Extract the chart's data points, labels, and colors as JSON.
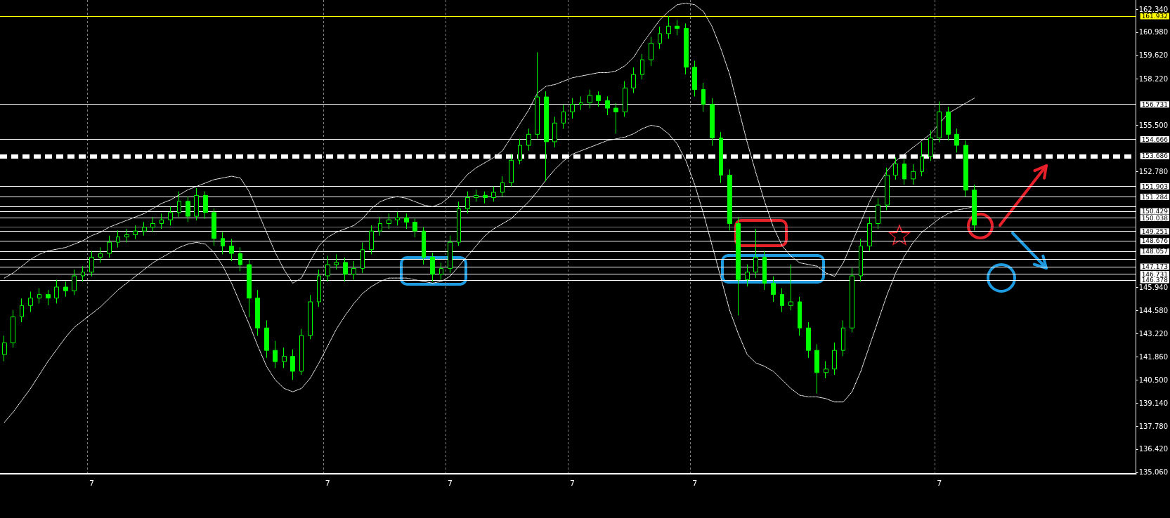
{
  "chart_data": {
    "type": "candlestick",
    "color": "#00ff00",
    "categories": [
      null,
      null,
      null,
      null,
      null,
      null,
      null,
      null,
      null,
      null,
      "7",
      null,
      null,
      null,
      null,
      null,
      null,
      null,
      null,
      null,
      null,
      null,
      null,
      null,
      null,
      null,
      null,
      null,
      null,
      null,
      null,
      null,
      null,
      null,
      null,
      null,
      null,
      "7",
      null,
      null,
      null,
      null,
      null,
      null,
      null,
      null,
      null,
      null,
      null,
      null,
      null,
      "7",
      null,
      null,
      null,
      null,
      null,
      null,
      null,
      null,
      null,
      null,
      null,
      null,
      null,
      "7",
      null,
      null,
      null,
      null,
      null,
      null,
      null,
      null,
      null,
      null,
      null,
      null,
      null,
      "7",
      null,
      null,
      null,
      null,
      null,
      null,
      null,
      null,
      null,
      null,
      null,
      null,
      null,
      null,
      null,
      null,
      null,
      null,
      null,
      null,
      null,
      null,
      null,
      null,
      null,
      null,
      null,
      "7",
      null,
      null,
      null,
      null,
      null,
      null,
      null,
      null,
      null,
      null,
      null,
      null,
      null,
      null,
      null,
      null,
      null,
      null,
      null,
      null,
      null,
      null
    ],
    "ohlc": [
      [
        142.0,
        143.1,
        141.6,
        142.68
      ],
      [
        142.68,
        144.6,
        142.4,
        144.22
      ],
      [
        144.22,
        145.3,
        143.9,
        144.88
      ],
      [
        144.88,
        145.7,
        144.5,
        145.32
      ],
      [
        145.32,
        145.9,
        145.0,
        145.53
      ],
      [
        145.53,
        145.8,
        144.9,
        145.32
      ],
      [
        145.32,
        146.4,
        145.0,
        145.97
      ],
      [
        145.97,
        146.3,
        145.4,
        145.75
      ],
      [
        145.75,
        147.0,
        145.5,
        146.63
      ],
      [
        146.63,
        147.2,
        146.3,
        146.85
      ],
      [
        146.85,
        148.1,
        146.6,
        147.73
      ],
      [
        147.73,
        148.3,
        147.4,
        147.95
      ],
      [
        147.95,
        149.0,
        147.7,
        148.61
      ],
      [
        148.61,
        149.3,
        148.3,
        148.92
      ],
      [
        148.92,
        149.4,
        148.6,
        149.05
      ],
      [
        149.05,
        149.6,
        148.8,
        149.27
      ],
      [
        149.27,
        149.8,
        149.0,
        149.49
      ],
      [
        149.49,
        150.1,
        149.2,
        149.71
      ],
      [
        149.71,
        150.3,
        149.4,
        149.93
      ],
      [
        149.93,
        150.7,
        149.6,
        150.36
      ],
      [
        150.36,
        151.6,
        150.1,
        151.02
      ],
      [
        151.02,
        151.3,
        149.8,
        150.14
      ],
      [
        150.14,
        151.8,
        149.9,
        151.37
      ],
      [
        151.37,
        151.6,
        150.0,
        150.36
      ],
      [
        150.36,
        150.6,
        148.4,
        148.83
      ],
      [
        148.83,
        149.2,
        147.9,
        148.39
      ],
      [
        148.39,
        148.8,
        147.5,
        147.95
      ],
      [
        147.95,
        148.3,
        146.9,
        147.29
      ],
      [
        147.29,
        147.6,
        144.2,
        145.32
      ],
      [
        145.32,
        145.8,
        143.1,
        143.56
      ],
      [
        143.56,
        144.0,
        141.8,
        142.24
      ],
      [
        142.24,
        142.8,
        141.2,
        141.58
      ],
      [
        141.58,
        142.4,
        141.2,
        141.89
      ],
      [
        141.89,
        142.3,
        140.5,
        141.01
      ],
      [
        141.01,
        143.5,
        140.8,
        143.12
      ],
      [
        143.12,
        145.5,
        142.9,
        145.1
      ],
      [
        145.1,
        147.0,
        144.8,
        146.63
      ],
      [
        146.63,
        147.8,
        146.3,
        147.29
      ],
      [
        147.29,
        147.9,
        147.0,
        147.42
      ],
      [
        147.42,
        147.7,
        146.3,
        146.72
      ],
      [
        146.72,
        147.5,
        146.4,
        147.07
      ],
      [
        147.07,
        148.6,
        146.8,
        148.17
      ],
      [
        148.17,
        149.6,
        147.9,
        149.27
      ],
      [
        149.27,
        150.1,
        149.0,
        149.71
      ],
      [
        149.71,
        150.3,
        149.4,
        149.93
      ],
      [
        149.93,
        150.4,
        149.6,
        150.06
      ],
      [
        150.06,
        150.3,
        149.4,
        149.79
      ],
      [
        149.79,
        150.0,
        148.9,
        149.27
      ],
      [
        149.27,
        149.5,
        147.3,
        147.73
      ],
      [
        147.73,
        148.0,
        146.3,
        146.72
      ],
      [
        146.72,
        147.4,
        146.4,
        147.07
      ],
      [
        147.07,
        149.0,
        146.8,
        148.61
      ],
      [
        148.61,
        151.0,
        148.4,
        150.58
      ],
      [
        150.58,
        151.6,
        150.3,
        151.24
      ],
      [
        151.24,
        151.7,
        151.0,
        151.37
      ],
      [
        151.37,
        151.6,
        150.9,
        151.24
      ],
      [
        151.24,
        151.9,
        151.0,
        151.55
      ],
      [
        151.55,
        152.5,
        151.3,
        152.12
      ],
      [
        152.12,
        153.8,
        151.9,
        153.44
      ],
      [
        153.44,
        154.7,
        153.2,
        154.32
      ],
      [
        154.32,
        155.3,
        154.0,
        154.97
      ],
      [
        154.97,
        159.8,
        154.7,
        157.17
      ],
      [
        157.17,
        157.5,
        152.2,
        154.53
      ],
      [
        154.53,
        156.0,
        154.2,
        155.63
      ],
      [
        155.63,
        156.7,
        155.3,
        156.29
      ],
      [
        156.29,
        157.1,
        155.9,
        156.73
      ],
      [
        156.73,
        157.2,
        156.4,
        156.82
      ],
      [
        156.82,
        157.6,
        156.5,
        157.26
      ],
      [
        157.26,
        157.5,
        156.6,
        156.95
      ],
      [
        156.95,
        157.2,
        156.1,
        156.51
      ],
      [
        156.51,
        156.8,
        155.0,
        156.29
      ],
      [
        156.29,
        158.1,
        156.0,
        157.7
      ],
      [
        157.7,
        158.9,
        157.4,
        158.49
      ],
      [
        158.49,
        159.7,
        158.2,
        159.36
      ],
      [
        159.36,
        160.7,
        159.0,
        160.33
      ],
      [
        160.33,
        161.3,
        160.0,
        160.9
      ],
      [
        160.9,
        161.93,
        160.6,
        161.34
      ],
      [
        161.34,
        161.7,
        160.8,
        161.21
      ],
      [
        161.21,
        161.5,
        158.5,
        158.92
      ],
      [
        158.92,
        159.3,
        157.2,
        157.61
      ],
      [
        157.61,
        158.0,
        156.3,
        156.73
      ],
      [
        156.73,
        157.1,
        154.3,
        154.75
      ],
      [
        154.75,
        155.1,
        152.1,
        152.56
      ],
      [
        152.56,
        152.9,
        149.3,
        149.71
      ],
      [
        149.71,
        150.1,
        144.3,
        146.41
      ],
      [
        146.41,
        147.3,
        146.0,
        146.85
      ],
      [
        146.85,
        149.4,
        146.5,
        147.73
      ],
      [
        147.73,
        148.1,
        145.8,
        146.19
      ],
      [
        146.19,
        146.6,
        145.1,
        145.53
      ],
      [
        145.53,
        145.9,
        144.5,
        144.88
      ],
      [
        144.88,
        147.3,
        144.6,
        145.1
      ],
      [
        145.1,
        145.4,
        143.1,
        143.56
      ],
      [
        143.56,
        143.9,
        141.8,
        142.24
      ],
      [
        142.24,
        142.6,
        139.7,
        140.93
      ],
      [
        140.93,
        141.6,
        140.6,
        141.14
      ],
      [
        141.14,
        142.7,
        140.8,
        142.24
      ],
      [
        142.24,
        144.0,
        141.9,
        143.56
      ],
      [
        143.56,
        147.1,
        143.3,
        146.63
      ],
      [
        146.63,
        148.8,
        146.3,
        148.39
      ],
      [
        148.39,
        150.1,
        148.1,
        149.71
      ],
      [
        149.71,
        151.2,
        149.4,
        150.8
      ],
      [
        150.8,
        153.0,
        150.5,
        152.56
      ],
      [
        152.56,
        153.6,
        152.3,
        153.22
      ],
      [
        153.22,
        153.5,
        152.0,
        152.34
      ],
      [
        152.34,
        153.2,
        152.0,
        152.78
      ],
      [
        152.78,
        154.5,
        152.5,
        153.66
      ],
      [
        153.66,
        155.2,
        153.4,
        154.75
      ],
      [
        154.75,
        156.9,
        154.5,
        156.29
      ],
      [
        156.29,
        156.6,
        154.6,
        154.97
      ],
      [
        154.97,
        155.3,
        153.9,
        154.32
      ],
      [
        154.32,
        154.6,
        151.3,
        151.68
      ],
      [
        151.68,
        152.0,
        149.3,
        149.62
      ],
      null,
      null,
      null,
      null,
      null,
      null,
      null,
      null,
      null,
      null,
      null,
      null,
      null,
      null,
      null,
      null,
      null,
      null
    ],
    "series": [
      {
        "type": "line",
        "color": "#ffffff",
        "line_style": "dotted",
        "marker": "none",
        "values": [
          146.5,
          146.8,
          147.2,
          147.6,
          147.9,
          148.1,
          148.2,
          148.3,
          148.5,
          148.7,
          149.0,
          149.2,
          149.5,
          149.7,
          149.9,
          150.1,
          150.3,
          150.6,
          150.9,
          151.1,
          151.4,
          151.7,
          151.9,
          152.1,
          152.3,
          152.4,
          152.5,
          152.4,
          151.6,
          150.4,
          149.2,
          148.0,
          147.0,
          146.2,
          146.5,
          147.5,
          148.4,
          148.9,
          149.2,
          149.4,
          149.6,
          150.0,
          150.6,
          151.0,
          151.2,
          151.3,
          151.2,
          151.0,
          150.8,
          150.7,
          150.9,
          151.3,
          152.0,
          152.6,
          153.0,
          153.3,
          153.6,
          154.0,
          154.8,
          155.6,
          156.4,
          157.4,
          157.8,
          157.9,
          158.1,
          158.3,
          158.4,
          158.5,
          158.6,
          158.6,
          158.7,
          159.0,
          159.5,
          160.3,
          161.0,
          161.7,
          162.2,
          162.6,
          162.7,
          162.6,
          162.2,
          161.3,
          160.0,
          158.5,
          156.5,
          154.5,
          152.7,
          151.0,
          149.5,
          148.4,
          147.8,
          147.4,
          147.3,
          147.2,
          146.8,
          146.6,
          147.4,
          148.6,
          149.8,
          151.0,
          152.0,
          152.8,
          153.4,
          153.8,
          154.2,
          154.6,
          155.0,
          155.6,
          156.2,
          156.5,
          156.8,
          157.1,
          null,
          null,
          null,
          null,
          null,
          null,
          null,
          null,
          null,
          null,
          null,
          null,
          null,
          null,
          null,
          null,
          null,
          null
        ]
      },
      {
        "type": "line",
        "color": "#ffffff",
        "line_style": "dotted",
        "marker": "none",
        "values": [
          138.0,
          138.6,
          139.3,
          140.0,
          140.8,
          141.6,
          142.3,
          143.0,
          143.6,
          144.0,
          144.4,
          144.8,
          145.3,
          145.8,
          146.2,
          146.6,
          147.0,
          147.4,
          147.7,
          148.0,
          148.3,
          148.5,
          148.6,
          148.5,
          148.0,
          147.2,
          146.2,
          145.0,
          143.8,
          142.5,
          141.3,
          140.5,
          140.0,
          139.8,
          140.0,
          140.6,
          141.5,
          142.5,
          143.5,
          144.3,
          145.0,
          145.6,
          146.0,
          146.3,
          146.5,
          146.5,
          146.5,
          146.4,
          146.3,
          146.2,
          146.3,
          146.6,
          147.2,
          147.8,
          148.4,
          149.0,
          149.4,
          149.7,
          150.0,
          150.5,
          151.0,
          151.6,
          152.3,
          152.9,
          153.4,
          153.8,
          154.0,
          154.2,
          154.4,
          154.6,
          154.7,
          154.8,
          155.0,
          155.3,
          155.5,
          155.4,
          155.0,
          154.4,
          153.4,
          152.0,
          150.3,
          148.4,
          146.5,
          144.6,
          143.2,
          142.0,
          141.5,
          141.3,
          141.0,
          140.5,
          140.0,
          139.6,
          139.5,
          139.5,
          139.4,
          139.2,
          139.2,
          139.8,
          141.0,
          142.5,
          144.0,
          145.5,
          146.8,
          147.8,
          148.6,
          149.2,
          149.6,
          150.0,
          150.3,
          150.5,
          150.6,
          150.7,
          null,
          null,
          null,
          null,
          null,
          null,
          null,
          null,
          null,
          null,
          null,
          null,
          null,
          null,
          null,
          null,
          null,
          null
        ]
      }
    ],
    "ylim": [
      134.97,
      162.88
    ],
    "yticks": [
      {
        "value": 162.34,
        "label": "162.340"
      },
      {
        "value": 160.98,
        "label": "160.980"
      },
      {
        "value": 159.62,
        "label": "159.620"
      },
      {
        "value": 158.22,
        "label": "158.220"
      },
      {
        "value": 155.5,
        "label": "155.500"
      },
      {
        "value": 152.78,
        "label": "152.780"
      },
      {
        "value": 145.94,
        "label": "145.940"
      },
      {
        "value": 144.58,
        "label": "144.580"
      },
      {
        "value": 143.22,
        "label": "143.220"
      },
      {
        "value": 141.86,
        "label": "141.860"
      },
      {
        "value": 140.5,
        "label": "140.500"
      },
      {
        "value": 139.14,
        "label": "139.140"
      },
      {
        "value": 137.78,
        "label": "137.780"
      },
      {
        "value": 136.42,
        "label": "136.420"
      },
      {
        "value": 135.06,
        "label": "135.060"
      }
    ],
    "grid": "x",
    "ref_lines": [
      {
        "axis": "y",
        "value": 161.932,
        "label": "161.932",
        "color": "#ffff00"
      },
      {
        "axis": "y",
        "value": 156.731,
        "label": "156.731",
        "color": "#ffffff"
      },
      {
        "axis": "y",
        "value": 154.666,
        "label": "154.666",
        "color": "#ffffff"
      },
      {
        "axis": "y",
        "value": 153.686,
        "label": "153.686",
        "color": "#ffffff",
        "line_style": "dashed"
      },
      {
        "axis": "y",
        "value": 151.903,
        "label": "151.903",
        "color": "#ffffff"
      },
      {
        "axis": "y",
        "value": 151.284,
        "label": "151.284",
        "color": "#ffffff"
      },
      {
        "axis": "y",
        "value": 150.7,
        "color": "#ffffff"
      },
      {
        "axis": "y",
        "value": 150.429,
        "label": "150.429",
        "color": "#ffffff"
      },
      {
        "axis": "y",
        "value": 150.038,
        "label": "150.038",
        "color": "#ffffff"
      },
      {
        "axis": "y",
        "value": 149.535,
        "color": "#808080"
      },
      {
        "axis": "y",
        "value": 149.251,
        "label": "149.251",
        "color": "#ffffff"
      },
      {
        "axis": "y",
        "value": 148.676,
        "label": "148.676",
        "color": "#ffffff"
      },
      {
        "axis": "y",
        "value": 148.057,
        "label": "148.057",
        "color": "#ffffff"
      },
      {
        "axis": "y",
        "value": 147.6,
        "color": "#ffffff"
      },
      {
        "axis": "y",
        "value": 147.173,
        "label": "147.173",
        "color": "#ffffff"
      },
      {
        "axis": "y",
        "value": 146.731,
        "label": "146.731",
        "color": "#ffffff"
      },
      {
        "axis": "y",
        "value": 146.378,
        "label": "146.378",
        "color": "#ffffff"
      }
    ]
  }
}
